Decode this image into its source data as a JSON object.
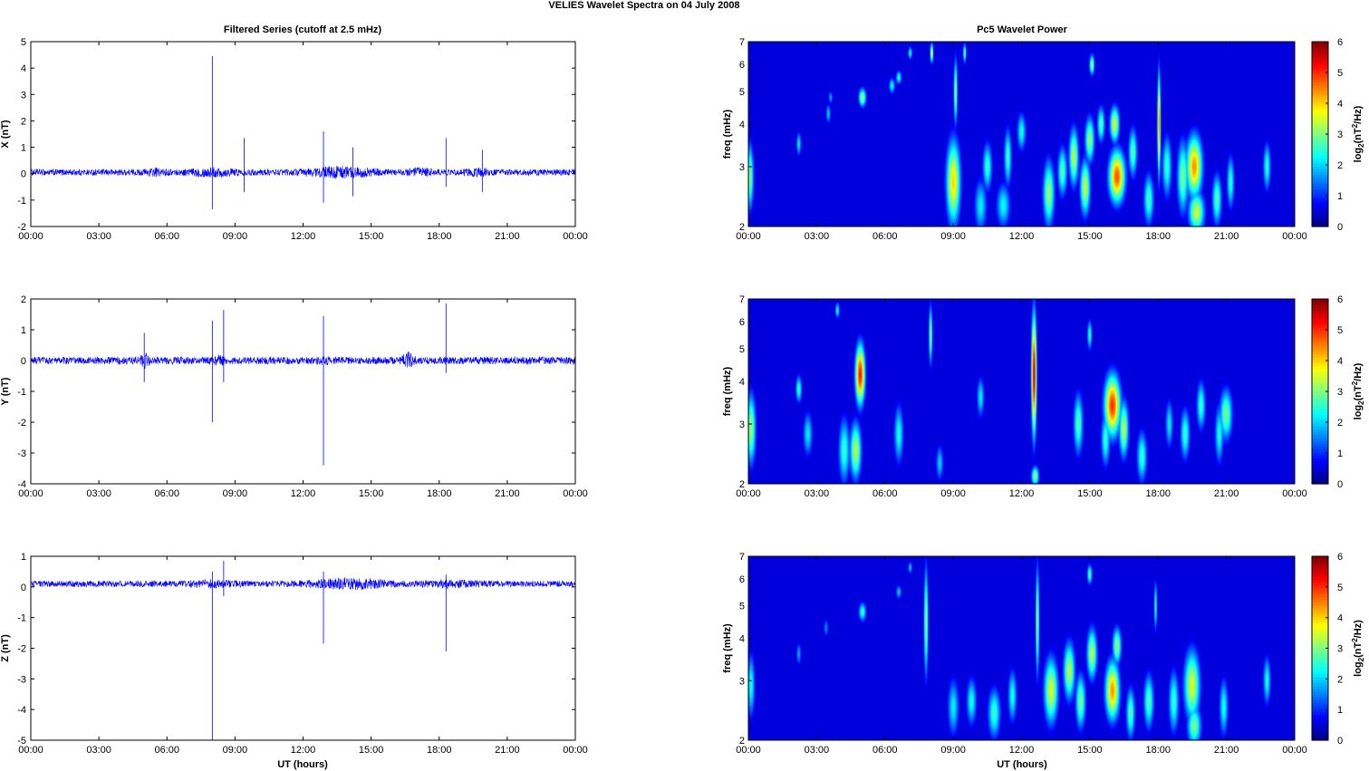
{
  "figure": {
    "title": "VELIES Wavelet Spectra on 04 July      2008",
    "left_title": "Filtered Series (cutoff at 2.5 mHz)",
    "right_title": "Pc5 Wavelet Power",
    "xlabel": "UT (hours)",
    "colorbar_label": "log2(nT^2/Hz)"
  },
  "colors": {
    "trace": "#0000ff",
    "axes": "#000000",
    "background": "#ffffff",
    "colormap": "jet"
  },
  "x_ticks": [
    "00:00",
    "03:00",
    "06:00",
    "09:00",
    "12:00",
    "15:00",
    "18:00",
    "21:00",
    "00:00"
  ],
  "chart_data": [
    {
      "type": "line",
      "component": "X",
      "ylabel": "X (nT)",
      "xlim_hours": [
        0,
        24
      ],
      "ylim": [
        -2,
        5
      ],
      "yticks": [
        -2,
        -1,
        0,
        1,
        2,
        3,
        4,
        5
      ],
      "baseline": 0.05,
      "noise_amp": 0.12,
      "active_intervals": [
        [
          4.8,
          6.2,
          1.6
        ],
        [
          6.5,
          9.5,
          1.8
        ],
        [
          11.5,
          15.8,
          2.2
        ],
        [
          16.4,
          18.0,
          1.8
        ],
        [
          19.0,
          20.5,
          1.8
        ]
      ],
      "spikes": [
        [
          8.0,
          4.45,
          -1.35
        ],
        [
          9.4,
          1.35,
          -0.7
        ],
        [
          12.9,
          1.6,
          -1.1
        ],
        [
          14.2,
          1.0,
          -0.85
        ],
        [
          18.3,
          1.35,
          -0.5
        ],
        [
          19.9,
          0.9,
          -0.7
        ]
      ]
    },
    {
      "type": "line",
      "component": "Y",
      "ylabel": "Y (nT)",
      "xlim_hours": [
        0,
        24
      ],
      "ylim": [
        -4,
        2
      ],
      "yticks": [
        -4,
        -3,
        -2,
        -1,
        0,
        1,
        2
      ],
      "baseline": 0.0,
      "noise_amp": 0.12,
      "active_intervals": [
        [
          4.7,
          5.3,
          2.5
        ],
        [
          8.0,
          8.6,
          1.8
        ],
        [
          12.6,
          13.2,
          1.6
        ],
        [
          16.2,
          17.0,
          2.6
        ]
      ],
      "spikes": [
        [
          8.0,
          1.3,
          -2.0
        ],
        [
          8.5,
          1.65,
          -0.7
        ],
        [
          12.9,
          1.45,
          -3.4
        ],
        [
          18.3,
          1.85,
          -0.4
        ],
        [
          5.0,
          0.9,
          -0.7
        ]
      ]
    },
    {
      "type": "line",
      "component": "Z",
      "ylabel": "Z (nT)",
      "xlim_hours": [
        0,
        24
      ],
      "ylim": [
        -5,
        1
      ],
      "yticks": [
        -5,
        -4,
        -3,
        -2,
        -1,
        0,
        1
      ],
      "baseline": 0.1,
      "noise_amp": 0.1,
      "active_intervals": [
        [
          6.5,
          9.5,
          1.6
        ],
        [
          11.5,
          16.5,
          2.2
        ],
        [
          16.5,
          20.5,
          1.6
        ]
      ],
      "spikes": [
        [
          8.0,
          0.5,
          -5.0
        ],
        [
          8.5,
          0.85,
          -0.3
        ],
        [
          12.9,
          0.5,
          -1.85
        ],
        [
          18.3,
          0.4,
          -2.1
        ]
      ]
    },
    {
      "type": "heatmap",
      "component": "X",
      "title": "Pc5 Wavelet Power",
      "ylabel": "freq (mHz)",
      "xlim_hours": [
        0,
        24
      ],
      "ylim_mhz": [
        2,
        7
      ],
      "y_scale": "log",
      "yticks": [
        2,
        3,
        4,
        5,
        6,
        7
      ],
      "clim": [
        0,
        6
      ],
      "cticks": [
        0,
        1,
        2,
        3,
        4,
        5,
        6
      ],
      "colorbar_label": "log2(nT^2/Hz)",
      "blobs": [
        [
          0.05,
          2.8,
          0.12,
          0.45,
          3.0
        ],
        [
          2.2,
          3.5,
          0.08,
          0.2,
          2.2
        ],
        [
          3.5,
          4.3,
          0.08,
          0.2,
          2.0
        ],
        [
          3.6,
          4.8,
          0.07,
          0.15,
          1.8
        ],
        [
          5.0,
          4.8,
          0.12,
          0.22,
          3.2
        ],
        [
          6.3,
          5.2,
          0.1,
          0.2,
          2.3
        ],
        [
          6.6,
          5.5,
          0.09,
          0.18,
          2.5
        ],
        [
          7.1,
          6.5,
          0.07,
          0.2,
          2.4
        ],
        [
          8.05,
          6.5,
          0.05,
          0.3,
          3.8
        ],
        [
          9.0,
          2.7,
          0.22,
          0.55,
          4.0
        ],
        [
          9.1,
          5.0,
          0.06,
          0.8,
          3.2
        ],
        [
          9.5,
          6.5,
          0.05,
          0.3,
          3.0
        ],
        [
          10.2,
          2.3,
          0.2,
          0.3,
          2.2
        ],
        [
          10.5,
          3.0,
          0.15,
          0.35,
          2.6
        ],
        [
          11.2,
          2.3,
          0.22,
          0.25,
          2.3
        ],
        [
          11.4,
          3.2,
          0.12,
          0.45,
          2.6
        ],
        [
          12.0,
          3.8,
          0.14,
          0.35,
          2.4
        ],
        [
          13.2,
          2.5,
          0.18,
          0.4,
          3.2
        ],
        [
          13.8,
          2.9,
          0.15,
          0.35,
          2.8
        ],
        [
          14.3,
          3.2,
          0.15,
          0.45,
          3.4
        ],
        [
          14.8,
          2.6,
          0.16,
          0.35,
          3.5
        ],
        [
          15.0,
          3.6,
          0.15,
          0.4,
          3.2
        ],
        [
          15.1,
          6.0,
          0.08,
          0.3,
          3.2
        ],
        [
          15.5,
          4.0,
          0.12,
          0.35,
          2.8
        ],
        [
          16.2,
          2.8,
          0.25,
          0.35,
          4.8
        ],
        [
          16.1,
          4.0,
          0.15,
          0.35,
          3.6
        ],
        [
          16.9,
          3.3,
          0.14,
          0.4,
          2.8
        ],
        [
          17.6,
          2.4,
          0.16,
          0.3,
          2.7
        ],
        [
          18.05,
          4.0,
          0.05,
          1.0,
          4.6
        ],
        [
          18.4,
          3.0,
          0.15,
          0.45,
          2.6
        ],
        [
          19.1,
          2.8,
          0.18,
          0.5,
          3.0
        ],
        [
          19.6,
          3.0,
          0.25,
          0.45,
          4.4
        ],
        [
          19.7,
          2.2,
          0.25,
          0.22,
          3.5
        ],
        [
          20.6,
          2.4,
          0.15,
          0.3,
          2.8
        ],
        [
          21.2,
          2.7,
          0.12,
          0.35,
          2.5
        ],
        [
          22.8,
          3.0,
          0.12,
          0.35,
          2.5
        ]
      ]
    },
    {
      "type": "heatmap",
      "component": "Y",
      "title": "",
      "ylabel": "freq (mHz)",
      "xlim_hours": [
        0,
        24
      ],
      "ylim_mhz": [
        2,
        7
      ],
      "y_scale": "log",
      "yticks": [
        2,
        3,
        4,
        5,
        6,
        7
      ],
      "clim": [
        0,
        6
      ],
      "cticks": [
        0,
        1,
        2,
        3,
        4,
        5,
        6
      ],
      "colorbar_label": "log2(nT^2/Hz)",
      "blobs": [
        [
          0.1,
          2.9,
          0.15,
          0.5,
          3.2
        ],
        [
          2.2,
          3.8,
          0.1,
          0.25,
          2.6
        ],
        [
          2.6,
          2.8,
          0.15,
          0.3,
          2.2
        ],
        [
          4.2,
          2.5,
          0.18,
          0.4,
          2.6
        ],
        [
          4.9,
          4.2,
          0.15,
          0.6,
          5.2
        ],
        [
          4.7,
          2.5,
          0.18,
          0.35,
          3.4
        ],
        [
          3.9,
          6.5,
          0.07,
          0.25,
          2.4
        ],
        [
          6.6,
          2.8,
          0.15,
          0.4,
          2.4
        ],
        [
          8.0,
          5.5,
          0.06,
          0.8,
          3.0
        ],
        [
          8.4,
          2.3,
          0.12,
          0.2,
          2.0
        ],
        [
          10.2,
          3.6,
          0.12,
          0.35,
          2.2
        ],
        [
          12.55,
          4.2,
          0.08,
          1.2,
          5.6
        ],
        [
          12.6,
          2.1,
          0.12,
          0.1,
          3.2
        ],
        [
          14.5,
          3.0,
          0.15,
          0.45,
          2.8
        ],
        [
          15.0,
          5.5,
          0.08,
          0.4,
          2.5
        ],
        [
          15.7,
          2.7,
          0.14,
          0.35,
          2.6
        ],
        [
          16.0,
          3.4,
          0.25,
          0.5,
          5.0
        ],
        [
          16.5,
          2.9,
          0.15,
          0.4,
          3.4
        ],
        [
          17.3,
          2.4,
          0.16,
          0.3,
          2.6
        ],
        [
          18.5,
          3.0,
          0.12,
          0.35,
          2.2
        ],
        [
          19.2,
          2.8,
          0.15,
          0.35,
          2.6
        ],
        [
          19.9,
          3.4,
          0.14,
          0.4,
          2.6
        ],
        [
          20.7,
          2.8,
          0.14,
          0.4,
          2.4
        ],
        [
          21.0,
          3.2,
          0.2,
          0.4,
          3.0
        ]
      ]
    },
    {
      "type": "heatmap",
      "component": "Z",
      "title": "",
      "ylabel": "freq (mHz)",
      "xlim_hours": [
        0,
        24
      ],
      "ylim_mhz": [
        2,
        7
      ],
      "y_scale": "log",
      "yticks": [
        2,
        3,
        4,
        5,
        6,
        7
      ],
      "clim": [
        0,
        6
      ],
      "cticks": [
        0,
        1,
        2,
        3,
        4,
        5,
        6
      ],
      "colorbar_label": "log2(nT^2/Hz)",
      "blobs": [
        [
          0.1,
          2.9,
          0.12,
          0.45,
          2.4
        ],
        [
          2.2,
          3.6,
          0.08,
          0.2,
          1.8
        ],
        [
          3.4,
          4.3,
          0.08,
          0.2,
          1.6
        ],
        [
          5.0,
          4.8,
          0.12,
          0.22,
          2.6
        ],
        [
          6.6,
          5.5,
          0.09,
          0.18,
          2.0
        ],
        [
          7.1,
          6.5,
          0.07,
          0.2,
          2.0
        ],
        [
          7.8,
          4.5,
          0.07,
          1.2,
          3.2
        ],
        [
          9.0,
          2.5,
          0.18,
          0.35,
          2.2
        ],
        [
          9.8,
          2.6,
          0.16,
          0.3,
          2.4
        ],
        [
          10.8,
          2.4,
          0.2,
          0.3,
          2.6
        ],
        [
          11.6,
          2.7,
          0.14,
          0.35,
          2.4
        ],
        [
          12.7,
          4.5,
          0.06,
          1.2,
          3.2
        ],
        [
          13.3,
          2.8,
          0.22,
          0.45,
          3.6
        ],
        [
          14.1,
          3.2,
          0.18,
          0.45,
          3.4
        ],
        [
          14.6,
          2.6,
          0.16,
          0.35,
          3.0
        ],
        [
          15.1,
          3.6,
          0.16,
          0.45,
          3.4
        ],
        [
          15.0,
          6.2,
          0.08,
          0.3,
          2.8
        ],
        [
          16.0,
          2.8,
          0.22,
          0.4,
          4.4
        ],
        [
          16.2,
          3.8,
          0.14,
          0.35,
          3.2
        ],
        [
          16.8,
          2.4,
          0.14,
          0.3,
          2.8
        ],
        [
          17.6,
          2.6,
          0.16,
          0.35,
          2.8
        ],
        [
          17.9,
          5.0,
          0.05,
          0.6,
          2.6
        ],
        [
          18.7,
          2.6,
          0.16,
          0.4,
          2.6
        ],
        [
          19.5,
          2.9,
          0.25,
          0.5,
          3.6
        ],
        [
          19.6,
          2.2,
          0.22,
          0.22,
          3.0
        ],
        [
          20.9,
          2.5,
          0.14,
          0.35,
          2.4
        ],
        [
          22.8,
          3.0,
          0.12,
          0.35,
          2.4
        ]
      ]
    }
  ]
}
